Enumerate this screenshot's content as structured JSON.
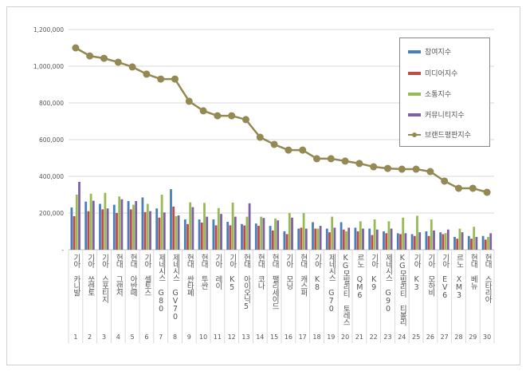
{
  "chart_data": {
    "type": "bar+line",
    "categories": [
      "기아 카니발",
      "기아 쏘렌토",
      "기아 스포티지",
      "현대 그랜저",
      "현대 아반떼",
      "기아 셀토스",
      "제네시스 G80",
      "제네시스 GV70",
      "현대 싼타페",
      "현대 투싼",
      "기아 레이",
      "기아 K5",
      "현대 아이오닉5",
      "현대 코나",
      "현대 팰리세이드",
      "기아 모닝",
      "현대 캐스퍼",
      "기아 K8",
      "제네시스 G70",
      "KG모빌리티 토레스",
      "르노 QM6",
      "기아 K9",
      "제네시스 G90",
      "KG모빌리티 티볼리",
      "기아 K3",
      "기아 모하비",
      "기아 EV6",
      "르노 XM3",
      "현대 베뉴",
      "현대 스타리아"
    ],
    "ranks": [
      "1",
      "2",
      "3",
      "4",
      "5",
      "6",
      "7",
      "8",
      "9",
      "10",
      "11",
      "12",
      "13",
      "14",
      "15",
      "16",
      "17",
      "18",
      "19",
      "20",
      "21",
      "22",
      "23",
      "24",
      "25",
      "26",
      "27",
      "28",
      "29",
      "30"
    ],
    "ylim": [
      0,
      1200000
    ],
    "yticks": [
      "-",
      "200,000",
      "400,000",
      "600,000",
      "800,000",
      "1,000,000",
      "1,200,000"
    ],
    "grid": true,
    "legend_position": "top-right",
    "series": [
      {
        "name": "참여지수",
        "kind": "bar",
        "color": "#4a7ebb",
        "values": [
          230000,
          262000,
          250000,
          245000,
          265000,
          285000,
          225000,
          330000,
          165000,
          165000,
          165000,
          152000,
          140000,
          143000,
          130000,
          100000,
          115000,
          150000,
          115000,
          150000,
          120000,
          115000,
          100000,
          90000,
          85000,
          100000,
          95000,
          70000,
          75000,
          75000
        ]
      },
      {
        "name": "미디어지수",
        "kind": "bar",
        "color": "#be4b48",
        "values": [
          183000,
          210000,
          220000,
          200000,
          220000,
          205000,
          175000,
          235000,
          140000,
          148000,
          133000,
          133000,
          132000,
          130000,
          105000,
          85000,
          120000,
          115000,
          95000,
          110000,
          100000,
          80000,
          90000,
          85000,
          75000,
          75000,
          85000,
          60000,
          60000,
          55000
        ]
      },
      {
        "name": "소통지수",
        "kind": "bar",
        "color": "#98b954",
        "values": [
          300000,
          305000,
          310000,
          290000,
          245000,
          250000,
          300000,
          183000,
          258000,
          255000,
          227000,
          257000,
          180000,
          180000,
          170000,
          200000,
          200000,
          115000,
          180000,
          100000,
          155000,
          165000,
          155000,
          175000,
          185000,
          165000,
          90000,
          115000,
          125000,
          70000
        ]
      },
      {
        "name": "커뮤니티지수",
        "kind": "bar",
        "color": "#7d60a0",
        "values": [
          370000,
          267000,
          225000,
          275000,
          265000,
          210000,
          203000,
          187000,
          232000,
          180000,
          195000,
          180000,
          253000,
          173000,
          160000,
          175000,
          115000,
          130000,
          120000,
          120000,
          115000,
          110000,
          115000,
          90000,
          95000,
          105000,
          110000,
          95000,
          70000,
          90000
        ]
      },
      {
        "name": "브랜드평판지수",
        "kind": "line",
        "color": "#938953",
        "values": [
          1100000,
          1056000,
          1043000,
          1022000,
          996000,
          957000,
          930000,
          930000,
          809000,
          757000,
          730000,
          730000,
          709000,
          613000,
          574000,
          543000,
          543000,
          496000,
          496000,
          483000,
          470000,
          452000,
          443000,
          439000,
          439000,
          426000,
          374000,
          335000,
          335000,
          313000
        ]
      }
    ]
  }
}
